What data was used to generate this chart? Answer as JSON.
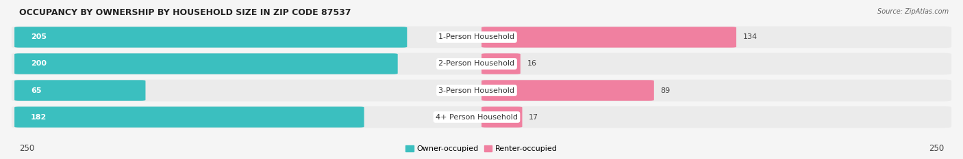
{
  "title": "OCCUPANCY BY OWNERSHIP BY HOUSEHOLD SIZE IN ZIP CODE 87537",
  "source": "Source: ZipAtlas.com",
  "categories": [
    "1-Person Household",
    "2-Person Household",
    "3-Person Household",
    "4+ Person Household"
  ],
  "owner_values": [
    205,
    200,
    65,
    182
  ],
  "renter_values": [
    134,
    16,
    89,
    17
  ],
  "owner_color": "#3bbfbf",
  "renter_color": "#f080a0",
  "owner_bg_color": "#d0ecec",
  "renter_bg_color": "#f5d0de",
  "row_bg_color": "#efefef",
  "axis_max": 250,
  "bg_color": "#f5f5f5",
  "legend_owner": "Owner-occupied",
  "legend_renter": "Renter-occupied",
  "figsize": [
    14.06,
    2.33
  ],
  "dpi": 100,
  "title_fontsize": 9,
  "source_fontsize": 7,
  "bar_label_fontsize": 8,
  "cat_label_fontsize": 8,
  "legend_fontsize": 8
}
